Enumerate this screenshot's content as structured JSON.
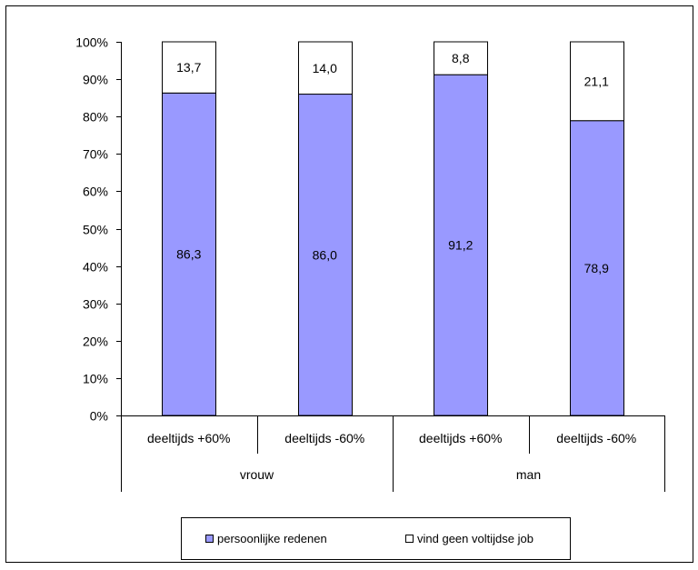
{
  "chart_data": {
    "type": "bar",
    "stacked": true,
    "percent_stacked": true,
    "categories": [
      "deeltijds +60%",
      "deeltijds -60%",
      "deeltijds +60%",
      "deeltijds -60%"
    ],
    "groups": [
      {
        "label": "vrouw",
        "categories": [
          "deeltijds +60%",
          "deeltijds -60%"
        ]
      },
      {
        "label": "man",
        "categories": [
          "deeltijds +60%",
          "deeltijds -60%"
        ]
      }
    ],
    "series": [
      {
        "name": "persoonlijke redenen",
        "values": [
          86.3,
          86.0,
          91.2,
          78.9
        ],
        "labels": [
          "86,3",
          "86,0",
          "91,2",
          "78,9"
        ],
        "color": "#9999ff"
      },
      {
        "name": "vind geen voltijdse job",
        "values": [
          13.7,
          14.0,
          8.8,
          21.1
        ],
        "labels": [
          "13,7",
          "14,0",
          "8,8",
          "21,1"
        ],
        "color": "#ffffff"
      }
    ],
    "yticks": [
      "0%",
      "10%",
      "20%",
      "30%",
      "40%",
      "50%",
      "60%",
      "70%",
      "80%",
      "90%",
      "100%"
    ],
    "ylim": [
      0,
      100
    ],
    "grid": false,
    "legend": "bottom"
  }
}
